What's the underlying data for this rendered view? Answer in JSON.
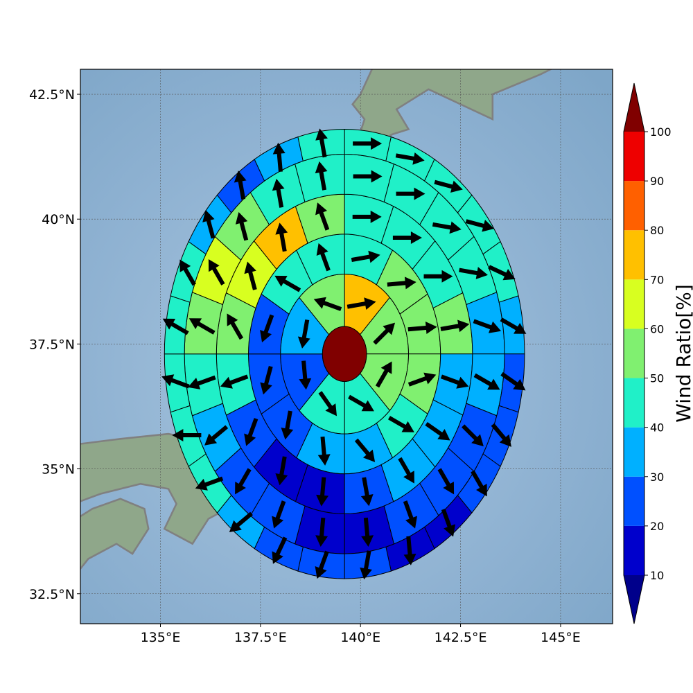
{
  "map": {
    "lon_range": [
      133,
      146.3
    ],
    "lat_range": [
      31.9,
      43.0
    ],
    "lon_ticks": [
      {
        "value": 135,
        "label": "135°E"
      },
      {
        "value": 137.5,
        "label": "137.5°E"
      },
      {
        "value": 140,
        "label": "140°E"
      },
      {
        "value": 142.5,
        "label": "142.5°E"
      },
      {
        "value": 145,
        "label": "145°E"
      }
    ],
    "lat_ticks": [
      {
        "value": 42.5,
        "label": "42.5°N"
      },
      {
        "value": 40,
        "label": "40°N"
      },
      {
        "value": 37.5,
        "label": "37.5°N"
      },
      {
        "value": 35,
        "label": "35°N"
      },
      {
        "value": 32.5,
        "label": "32.5°N"
      }
    ],
    "grid": true,
    "coastline_color": "#808080",
    "ocean_color": "#9dbcd6",
    "land_color": "#8fa78a"
  },
  "chart_data": {
    "type": "heatmap",
    "center": {
      "lon": 139.6,
      "lat": 37.3
    },
    "center_value": 100,
    "ring_radii_deg": [
      0.55,
      1.6,
      2.4,
      3.2,
      4.0,
      4.5
    ],
    "sectors_per_ring": [
      8,
      12,
      16,
      20,
      24
    ],
    "values": [
      [
        70,
        55,
        55,
        45,
        45,
        25,
        30,
        50
      ],
      [
        45,
        50,
        55,
        50,
        40,
        35,
        30,
        22,
        20,
        25,
        45,
        45
      ],
      [
        45,
        45,
        45,
        50,
        35,
        35,
        30,
        22,
        15,
        15,
        25,
        45,
        55,
        65,
        75,
        50
      ],
      [
        45,
        45,
        45,
        40,
        35,
        30,
        25,
        20,
        20,
        15,
        15,
        20,
        25,
        35,
        45,
        55,
        65,
        50,
        45,
        40
      ],
      [
        45,
        40,
        45,
        45,
        40,
        35,
        25,
        20,
        20,
        15,
        15,
        20,
        20,
        25,
        35,
        40,
        45,
        45,
        45,
        40,
        35,
        25,
        35,
        45
      ]
    ],
    "wind_directions_deg": [
      [
        80,
        45,
        30,
        120,
        145,
        175,
        190,
        290
      ],
      [
        80,
        85,
        85,
        70,
        120,
        140,
        175,
        190,
        195,
        200,
        300,
        340
      ],
      [
        90,
        90,
        90,
        80,
        110,
        125,
        150,
        170,
        185,
        190,
        200,
        250,
        330,
        345,
        350,
        340
      ],
      [
        90,
        90,
        100,
        100,
        110,
        120,
        135,
        150,
        160,
        175,
        185,
        200,
        210,
        230,
        250,
        300,
        330,
        345,
        350,
        350
      ],
      [
        90,
        100,
        105,
        105,
        115,
        120,
        125,
        140,
        150,
        160,
        175,
        190,
        200,
        205,
        230,
        250,
        270,
        290,
        300,
        330,
        345,
        350,
        355,
        350
      ]
    ],
    "colorbar": {
      "title": "Wind Ratio[%]",
      "levels": [
        10,
        20,
        30,
        40,
        50,
        60,
        70,
        80,
        90,
        100
      ],
      "colors": [
        "#0000cc",
        "#0050ff",
        "#00b0ff",
        "#20f0c8",
        "#80f070",
        "#d8ff20",
        "#ffc000",
        "#ff6000",
        "#ee0000"
      ],
      "under_color": "#00008b",
      "over_color": "#800000",
      "tick_labels": [
        "10",
        "20",
        "30",
        "40",
        "50",
        "60",
        "70",
        "80",
        "90",
        "100"
      ]
    }
  }
}
